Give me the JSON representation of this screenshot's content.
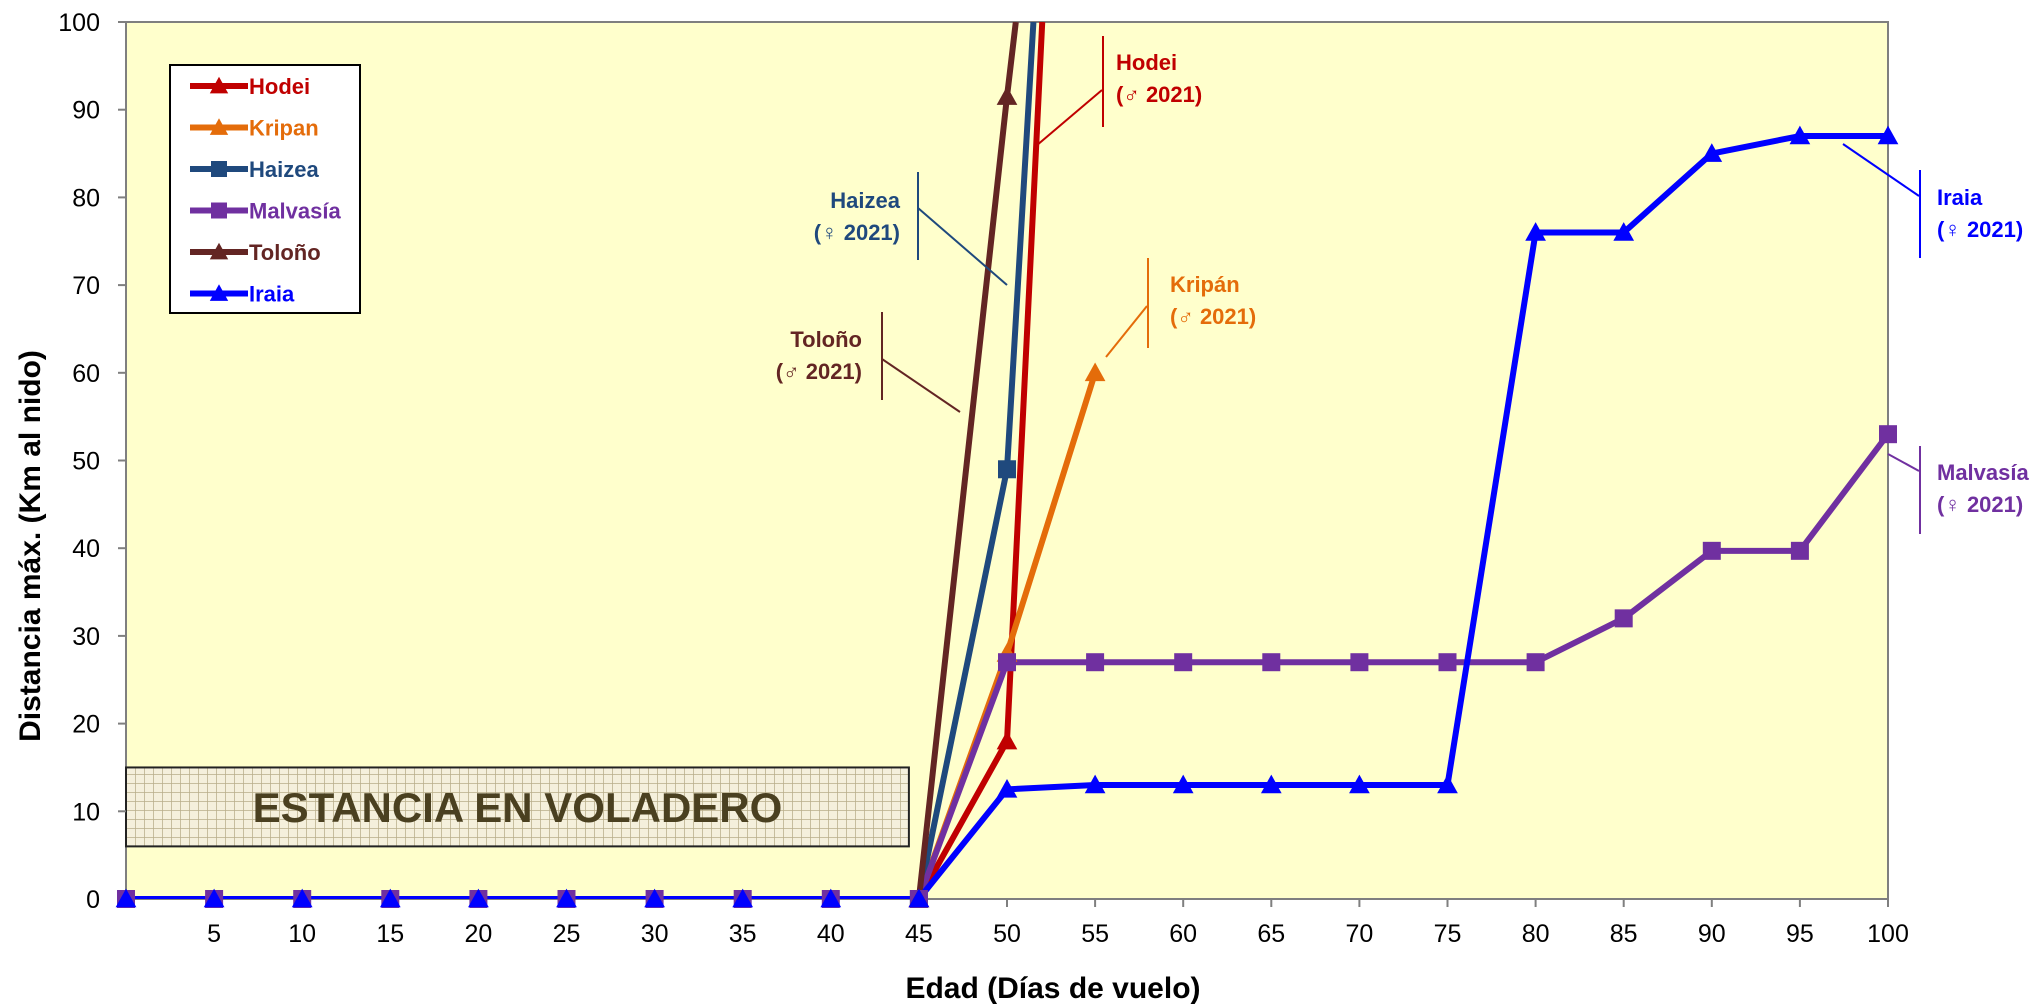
{
  "chart_data": {
    "type": "line",
    "xlabel": "Edad (Días de vuelo)",
    "ylabel": "Distancia máx. (Km al nido)",
    "xlim": [
      0,
      100
    ],
    "ylim": [
      0,
      100
    ],
    "x_ticks": [
      5,
      10,
      15,
      20,
      25,
      30,
      35,
      40,
      45,
      50,
      55,
      60,
      65,
      70,
      75,
      80,
      85,
      90,
      95,
      100
    ],
    "y_ticks": [
      0,
      10,
      20,
      30,
      40,
      50,
      60,
      70,
      80,
      90,
      100
    ],
    "grid": false,
    "legend_position": "top-left",
    "plot_background": "#ffffcc",
    "shaded_region": {
      "label": "ESTANCIA EN VOLADERO",
      "x_range": [
        0,
        45
      ],
      "y_range": [
        6,
        15
      ]
    },
    "series": [
      {
        "name": "Hodei",
        "color": "#c00000",
        "marker": "triangle",
        "x": [
          45,
          50,
          52
        ],
        "y": [
          0,
          18,
          100
        ]
      },
      {
        "name": "Kripan",
        "color": "#e46c0a",
        "marker": "triangle",
        "x": [
          45,
          50,
          55
        ],
        "y": [
          0,
          28,
          60
        ]
      },
      {
        "name": "Haizea",
        "color": "#1f497d",
        "marker": "square",
        "x": [
          45,
          50,
          51.5
        ],
        "y": [
          0,
          49,
          100
        ]
      },
      {
        "name": "Malvasía",
        "color": "#7030a0",
        "marker": "square",
        "x": [
          0,
          5,
          10,
          15,
          20,
          25,
          30,
          35,
          40,
          45,
          50,
          55,
          60,
          65,
          70,
          75,
          80,
          85,
          90,
          95,
          100
        ],
        "y": [
          0,
          0,
          0,
          0,
          0,
          0,
          0,
          0,
          0,
          0,
          27,
          27,
          27,
          27,
          27,
          27,
          27,
          32,
          39.7,
          39.7,
          53
        ]
      },
      {
        "name": "Toloño",
        "color": "#632523",
        "marker": "triangle",
        "x": [
          45,
          50,
          50.5
        ],
        "y": [
          0,
          91.5,
          100
        ]
      },
      {
        "name": "Iraia",
        "color": "#0000ff",
        "marker": "triangle",
        "x": [
          0,
          5,
          10,
          15,
          20,
          25,
          30,
          35,
          40,
          45,
          50,
          55,
          60,
          65,
          70,
          75,
          80,
          85,
          90,
          95,
          100
        ],
        "y": [
          0,
          0,
          0,
          0,
          0,
          0,
          0,
          0,
          0,
          0,
          12.5,
          13,
          13,
          13,
          13,
          13,
          76,
          76,
          85,
          87,
          87
        ]
      }
    ],
    "annotations": [
      {
        "series": "Hodei",
        "line1": "Hodei",
        "line2": "(♂ 2021)",
        "color": "#c00000"
      },
      {
        "series": "Haizea",
        "line1": "Haizea",
        "line2": "(♀ 2021)",
        "color": "#1f497d"
      },
      {
        "series": "Kripan",
        "line1": "Kripán",
        "line2": "(♂ 2021)",
        "color": "#e46c0a"
      },
      {
        "series": "Toloño",
        "line1": "Toloño",
        "line2": "(♂ 2021)",
        "color": "#632523"
      },
      {
        "series": "Iraia",
        "line1": "Iraia",
        "line2": "(♀ 2021)",
        "color": "#0000ff"
      },
      {
        "series": "Malvasía",
        "line1": "Malvasía",
        "line2": "(♀ 2021)",
        "color": "#7030a0"
      }
    ]
  }
}
